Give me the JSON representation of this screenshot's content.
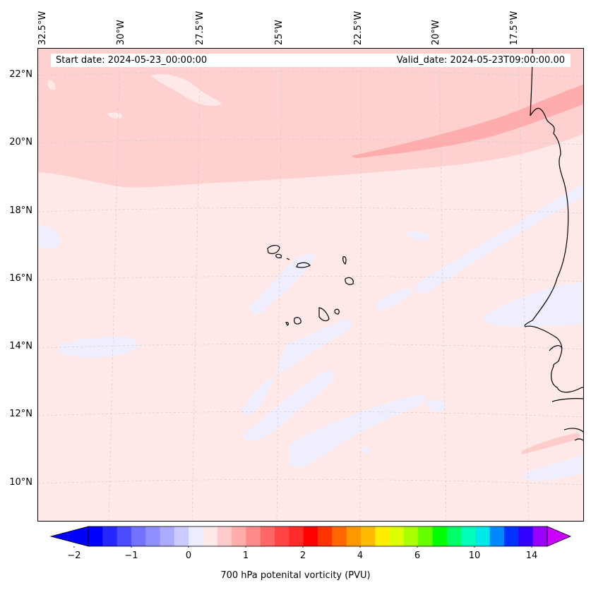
{
  "header": {
    "start_date": "Start date: 2024-05-23_00:00:00",
    "valid_date": "Valid_date: 2024-05-23T09:00:00.00"
  },
  "map": {
    "projection": "lambert conformal",
    "extent": {
      "lon_range": [
        "32.5°W",
        "15.5°W"
      ],
      "lat_range": [
        "9°N",
        "22.8°N"
      ]
    },
    "lat_labels": [
      "22°N",
      "20°N",
      "18°N",
      "16°N",
      "14°N",
      "12°N",
      "10°N"
    ],
    "lon_labels": [
      "32.5°W",
      "30°W",
      "27.5°W",
      "25°W",
      "22.5°W",
      "20°W",
      "17.5°W"
    ],
    "gridlines": true,
    "features": [
      "Cape Verde islands",
      "West African coastline (Mauritania, Senegal, Gambia, Guinea-Bissau)"
    ]
  },
  "chart_data": {
    "type": "heatmap",
    "variable": "700 hPa potenital vorticity (PVU)",
    "colorbar": {
      "label": "700 hPa potenital vorticity (PVU)",
      "extend": "both",
      "tick_labels": [
        "−2",
        "−1",
        "0",
        "1",
        "2",
        "4",
        "6",
        "10",
        "14"
      ],
      "colors": [
        "#0000ff",
        "#2626ff",
        "#4c4cff",
        "#7272ff",
        "#8f8fff",
        "#ababff",
        "#cbcbff",
        "#ececff",
        "#ffe8e8",
        "#ffcccc",
        "#ffacac",
        "#ff8a8a",
        "#ff6666",
        "#ff4444",
        "#ff2a2a",
        "#ff0000",
        "#ff3300",
        "#ff6600",
        "#ff9900",
        "#ffbb00",
        "#ffee00",
        "#ddff00",
        "#aaff00",
        "#66ff00",
        "#00ff00",
        "#00ff66",
        "#00ffbb",
        "#00e8e8",
        "#0088ff",
        "#0033ff",
        "#3300ff",
        "#9900ff"
      ],
      "under_color": "#0000ff",
      "over_color": "#cc00ff"
    },
    "field_summary": [
      {
        "region": "background (most of domain)",
        "level": "0 to 0.25 PVU"
      },
      {
        "region": "northern band above ~19°N",
        "level": "0.25 to 0.5 PVU"
      },
      {
        "region": "narrow NE-SW band near 20–21°N",
        "level": "0.5 to 0.75 PVU"
      },
      {
        "region": "scattered SW-NE streaks",
        "level": "-0.25 to 0 PVU"
      }
    ]
  }
}
